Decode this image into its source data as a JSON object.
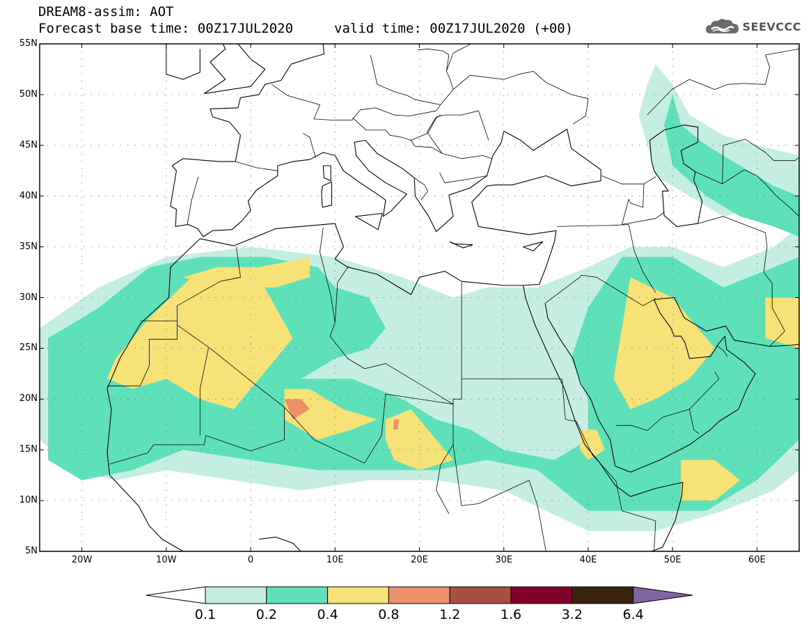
{
  "header": {
    "title_line1": "DREAM8-assim: AOT",
    "title_line2": "Forecast base time: 00Z17JUL2020",
    "valid_time": "valid time: 00Z17JUL2020 (+00)"
  },
  "logo": {
    "text": "SEEVCCC",
    "icon": "cloud-logo-icon"
  },
  "map": {
    "projection": "cylindrical",
    "lon_range": [
      -25,
      65
    ],
    "lat_range": [
      5,
      55
    ],
    "lat_ticks": [
      {
        "value": 55,
        "label": "55N"
      },
      {
        "value": 50,
        "label": "50N"
      },
      {
        "value": 45,
        "label": "45N"
      },
      {
        "value": 40,
        "label": "40N"
      },
      {
        "value": 35,
        "label": "35N"
      },
      {
        "value": 30,
        "label": "30N"
      },
      {
        "value": 25,
        "label": "25N"
      },
      {
        "value": 20,
        "label": "20N"
      },
      {
        "value": 15,
        "label": "15N"
      },
      {
        "value": 10,
        "label": "10N"
      },
      {
        "value": 5,
        "label": "5N"
      }
    ],
    "lon_ticks": [
      {
        "value": -20,
        "label": "20W"
      },
      {
        "value": -10,
        "label": "10W"
      },
      {
        "value": 0,
        "label": "0"
      },
      {
        "value": 10,
        "label": "10E"
      },
      {
        "value": 20,
        "label": "20E"
      },
      {
        "value": 30,
        "label": "30E"
      },
      {
        "value": 40,
        "label": "40E"
      },
      {
        "value": 50,
        "label": "50E"
      },
      {
        "value": 60,
        "label": "60E"
      }
    ],
    "grid": "dotted"
  },
  "colorbar": {
    "levels": [
      "0.1",
      "0.2",
      "0.4",
      "0.8",
      "1.2",
      "1.6",
      "3.2",
      "6.4"
    ],
    "colors": [
      "#ffffff",
      "#c5eee3",
      "#5ee0b8",
      "#f6e276",
      "#eb906a",
      "#a85040",
      "#800028",
      "#3a2410",
      "#8064a2"
    ]
  },
  "chart_data": {
    "type": "heatmap",
    "title": "DREAM8-assim: AOT",
    "variable": "AOT",
    "xlabel": "",
    "ylabel": "",
    "xlim": [
      -25,
      65
    ],
    "ylim": [
      5,
      55
    ],
    "grid": true,
    "bins": [
      "0.1",
      "0.2",
      "0.4",
      "0.8",
      "1.2",
      "1.6",
      "3.2",
      "6.4"
    ],
    "regions": [
      {
        "level": 1,
        "lonlat": [
          [
            -25,
            27
          ],
          [
            -18,
            31
          ],
          [
            -10,
            34
          ],
          [
            0,
            35
          ],
          [
            10,
            34
          ],
          [
            18,
            32
          ],
          [
            24,
            30
          ],
          [
            28,
            31
          ],
          [
            34,
            31
          ],
          [
            40,
            33
          ],
          [
            45,
            35
          ],
          [
            50,
            35
          ],
          [
            56,
            33
          ],
          [
            62,
            35
          ],
          [
            65,
            37
          ],
          [
            65,
            13
          ],
          [
            62,
            11
          ],
          [
            56,
            9
          ],
          [
            48,
            7
          ],
          [
            40,
            7
          ],
          [
            30,
            11
          ],
          [
            22,
            12
          ],
          [
            14,
            12
          ],
          [
            6,
            11
          ],
          [
            -2,
            12
          ],
          [
            -10,
            13
          ],
          [
            -16,
            12
          ],
          [
            -21,
            13
          ],
          [
            -25,
            16
          ]
        ]
      },
      {
        "level": 1,
        "lonlat": [
          [
            48,
            53
          ],
          [
            50,
            51
          ],
          [
            52,
            48
          ],
          [
            56,
            46
          ],
          [
            60,
            45
          ],
          [
            65,
            44
          ],
          [
            65,
            40
          ],
          [
            62,
            39
          ],
          [
            56,
            38
          ],
          [
            52,
            40
          ],
          [
            48,
            42
          ],
          [
            47,
            45
          ],
          [
            46,
            48
          ],
          [
            47,
            51
          ]
        ]
      },
      {
        "level": 2,
        "lonlat": [
          [
            -24,
            26
          ],
          [
            -18,
            29
          ],
          [
            -12,
            33
          ],
          [
            -6,
            34
          ],
          [
            2,
            34
          ],
          [
            8,
            33
          ],
          [
            10,
            31
          ],
          [
            14,
            30
          ],
          [
            16,
            27
          ],
          [
            14,
            25
          ],
          [
            10,
            24
          ],
          [
            6,
            22
          ],
          [
            12,
            22
          ],
          [
            18,
            20
          ],
          [
            22,
            18
          ],
          [
            26,
            17
          ],
          [
            30,
            15
          ],
          [
            36,
            14
          ],
          [
            40,
            16
          ],
          [
            40,
            20
          ],
          [
            38,
            24
          ],
          [
            40,
            29
          ],
          [
            44,
            34
          ],
          [
            50,
            34
          ],
          [
            56,
            31
          ],
          [
            62,
            33
          ],
          [
            65,
            34
          ],
          [
            65,
            16
          ],
          [
            60,
            12
          ],
          [
            54,
            9
          ],
          [
            46,
            9
          ],
          [
            40,
            9
          ],
          [
            34,
            13
          ],
          [
            28,
            14
          ],
          [
            22,
            13
          ],
          [
            16,
            13
          ],
          [
            8,
            13
          ],
          [
            0,
            14
          ],
          [
            -8,
            15
          ],
          [
            -14,
            13
          ],
          [
            -20,
            12
          ],
          [
            -24,
            14
          ]
        ]
      },
      {
        "level": 2,
        "lonlat": [
          [
            50,
            50
          ],
          [
            51,
            47
          ],
          [
            54,
            45
          ],
          [
            58,
            43
          ],
          [
            62,
            41
          ],
          [
            65,
            40
          ],
          [
            65,
            36
          ],
          [
            62,
            37
          ],
          [
            58,
            38
          ],
          [
            54,
            40
          ],
          [
            50,
            43
          ],
          [
            49,
            47
          ]
        ]
      },
      {
        "level": 3,
        "lonlat": [
          [
            -16,
            24
          ],
          [
            -12,
            28
          ],
          [
            -7,
            32
          ],
          [
            -3,
            33
          ],
          [
            1,
            32
          ],
          [
            3,
            29
          ],
          [
            5,
            26
          ],
          [
            2,
            23
          ],
          [
            -2,
            19
          ],
          [
            -6,
            20
          ],
          [
            -10,
            22
          ],
          [
            -14,
            21
          ],
          [
            -17,
            22
          ]
        ]
      },
      {
        "level": 3,
        "lonlat": [
          [
            -8,
            32
          ],
          [
            -4,
            33
          ],
          [
            1,
            33
          ],
          [
            7,
            34
          ],
          [
            7,
            32
          ],
          [
            3,
            31
          ],
          [
            -4,
            31
          ]
        ]
      },
      {
        "level": 3,
        "lonlat": [
          [
            4,
            21
          ],
          [
            7,
            21
          ],
          [
            11,
            19
          ],
          [
            15,
            18
          ],
          [
            12,
            17
          ],
          [
            8,
            16
          ],
          [
            4,
            18
          ]
        ]
      },
      {
        "level": 3,
        "lonlat": [
          [
            16,
            18
          ],
          [
            19,
            19
          ],
          [
            21,
            17
          ],
          [
            23,
            15
          ],
          [
            24,
            14
          ],
          [
            20,
            13
          ],
          [
            17,
            14
          ],
          [
            16,
            16
          ]
        ]
      },
      {
        "level": 3,
        "lonlat": [
          [
            45,
            32
          ],
          [
            50,
            30
          ],
          [
            53,
            27
          ],
          [
            55,
            25
          ],
          [
            52,
            22
          ],
          [
            48,
            20
          ],
          [
            45,
            19
          ],
          [
            43,
            22
          ],
          [
            44,
            27
          ]
        ]
      },
      {
        "level": 3,
        "lonlat": [
          [
            51,
            14
          ],
          [
            55,
            14
          ],
          [
            58,
            12
          ],
          [
            55,
            10
          ],
          [
            51,
            10
          ]
        ]
      },
      {
        "level": 3,
        "lonlat": [
          [
            39,
            17
          ],
          [
            41,
            17
          ],
          [
            42,
            15
          ],
          [
            40,
            14
          ],
          [
            39,
            15
          ]
        ]
      },
      {
        "level": 3,
        "lonlat": [
          [
            61,
            30
          ],
          [
            65,
            30
          ],
          [
            65,
            25
          ],
          [
            61,
            26
          ]
        ]
      },
      {
        "level": 4,
        "lonlat": [
          [
            4,
            20
          ],
          [
            6,
            20
          ],
          [
            7,
            19
          ],
          [
            5,
            18
          ]
        ]
      },
      {
        "level": 4,
        "lonlat": [
          [
            17,
            18
          ],
          [
            17.6,
            18
          ],
          [
            17.4,
            17
          ],
          [
            16.9,
            17
          ]
        ]
      }
    ]
  }
}
